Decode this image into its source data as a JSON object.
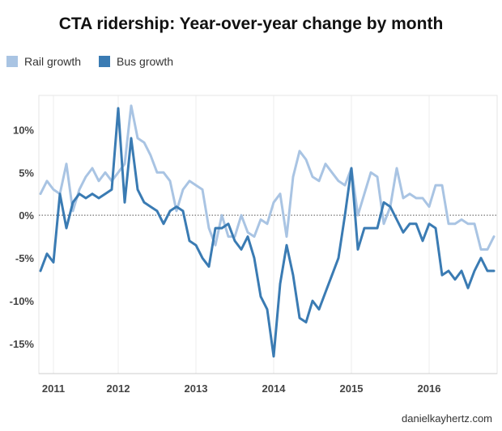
{
  "chart_data": {
    "type": "line",
    "title": "CTA ridership: Year-over-year change by month",
    "xlabel": "",
    "ylabel": "",
    "ylim": [
      -18.5,
      14
    ],
    "y_ticks": [
      10,
      5,
      0,
      -5,
      -10,
      -15
    ],
    "y_tick_labels": [
      "10%",
      "5%",
      "0%",
      "-5%",
      "-10%",
      "-15%"
    ],
    "x_ticks": [
      {
        "label": "2011",
        "index": 2
      },
      {
        "label": "2012",
        "index": 12
      },
      {
        "label": "2013",
        "index": 24
      },
      {
        "label": "2014",
        "index": 36
      },
      {
        "label": "2015",
        "index": 48
      },
      {
        "label": "2016",
        "index": 60
      }
    ],
    "x_count": 71,
    "zero_line": "dotted",
    "legend_position": "top-left",
    "series": [
      {
        "name": "Rail growth",
        "color": "#a9c4e3",
        "values": [
          2.5,
          4.0,
          3.0,
          2.5,
          6.0,
          0.5,
          3.0,
          4.5,
          5.5,
          4.0,
          5.0,
          4.0,
          5.0,
          6.0,
          12.8,
          9.0,
          8.5,
          7.0,
          5.0,
          5.0,
          4.0,
          0.5,
          3.0,
          4.0,
          3.5,
          3.0,
          -1.5,
          -3.5,
          0.0,
          -2.5,
          -2.5,
          0.0,
          -2.0,
          -2.5,
          -0.5,
          -1.0,
          1.5,
          2.5,
          -2.5,
          4.5,
          7.5,
          6.5,
          4.5,
          4.0,
          6.0,
          5.0,
          4.0,
          3.5,
          5.5,
          0.0,
          2.5,
          5.0,
          4.5,
          -1.0,
          1.0,
          5.5,
          2.0,
          2.5,
          2.0,
          2.0,
          1.0,
          3.5,
          3.5,
          -1.0,
          -1.0,
          -0.5,
          -1.0,
          -1.0,
          -4.0,
          -4.0,
          -2.5
        ]
      },
      {
        "name": "Bus growth",
        "color": "#3a7bb3",
        "values": [
          -6.5,
          -4.5,
          -5.5,
          2.5,
          -1.5,
          1.5,
          2.5,
          2.0,
          2.5,
          2.0,
          2.5,
          3.0,
          12.5,
          1.5,
          9.0,
          3.0,
          1.5,
          1.0,
          0.5,
          -1.0,
          0.5,
          1.0,
          0.5,
          -3.0,
          -3.5,
          -5.0,
          -6.0,
          -1.5,
          -1.5,
          -1.0,
          -3.0,
          -4.0,
          -2.5,
          -5.0,
          -9.5,
          -11.0,
          -16.5,
          -8.0,
          -3.5,
          -7.0,
          -12.0,
          -12.5,
          -10.0,
          -11.0,
          -9.0,
          -7.0,
          -5.0,
          0.0,
          5.5,
          -4.0,
          -1.5,
          -1.5,
          -1.5,
          1.5,
          1.0,
          -0.5,
          -2.0,
          -1.0,
          -1.0,
          -3.0,
          -1.0,
          -1.5,
          -7.0,
          -6.5,
          -7.5,
          -6.5,
          -8.5,
          -6.5,
          -5.0,
          -6.5,
          -6.5
        ]
      }
    ],
    "y_gridlines": false,
    "x_gridlines": true
  },
  "credit": "danielkayhertz.com"
}
